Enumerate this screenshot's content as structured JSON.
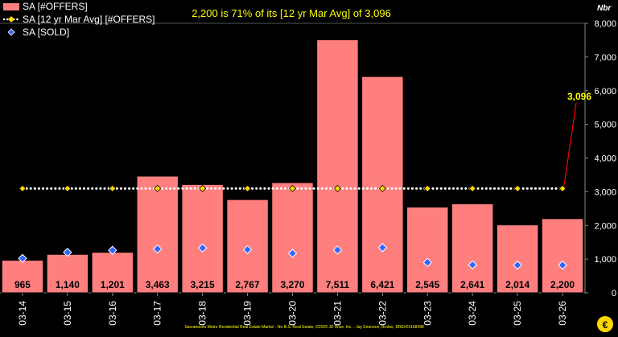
{
  "chart_data": {
    "type": "bar",
    "title": "2,200 is 71% of its [12 yr Mar Avg] of 3,096",
    "ylabel": "Nbr",
    "ylim": [
      0,
      8000
    ],
    "yticks": [
      "0",
      "1,000",
      "2,000",
      "3,000",
      "4,000",
      "5,000",
      "6,000",
      "7,000",
      "8,000"
    ],
    "yticks_values": [
      0,
      1000,
      2000,
      3000,
      4000,
      5000,
      6000,
      7000,
      8000
    ],
    "categories": [
      "03-14",
      "03-15",
      "03-16",
      "03-17",
      "03-18",
      "03-19",
      "03-20",
      "03-21",
      "03-22",
      "03-23",
      "03-24",
      "03-25",
      "03-26"
    ],
    "series": [
      {
        "name": "SA [#OFFERS]",
        "kind": "bar",
        "color": "#ff7f7f",
        "values": [
          965,
          1140,
          1201,
          3463,
          3215,
          2767,
          3270,
          7511,
          6421,
          2545,
          2641,
          2014,
          2200
        ],
        "labels": [
          "965",
          "1,140",
          "1,201",
          "3,463",
          "3,215",
          "2,767",
          "3,270",
          "7,511",
          "6,421",
          "2,545",
          "2,641",
          "2,014",
          "2,200"
        ]
      },
      {
        "name": "SA [12 yr Mar Avg] [#OFFERS]",
        "kind": "line-dotted",
        "color": "#ffd700",
        "values": [
          3096,
          3096,
          3096,
          3096,
          3096,
          3096,
          3096,
          3096,
          3096,
          3096,
          3096,
          3096,
          3096
        ]
      },
      {
        "name": "SA [SOLD]",
        "kind": "marker-diamond",
        "color": "#3366ff",
        "values": [
          1020,
          1200,
          1260,
          1300,
          1330,
          1280,
          1170,
          1270,
          1340,
          900,
          830,
          820,
          820
        ]
      }
    ],
    "annotation": {
      "text": "3,096",
      "value": 3096,
      "color": "#ffff00"
    },
    "footer": "Sacramento Metro Residential Real Estate Market - No B.S. Real Estate, ©2026 JD Wise, Inc. - Jay Emerson, Broker, DRE#01168498",
    "grid": false,
    "legend_position": "top-left",
    "colors": {
      "background": "#000000",
      "text": "#ffffff",
      "title": "#ffff00",
      "arrow": "#ff0000"
    }
  }
}
